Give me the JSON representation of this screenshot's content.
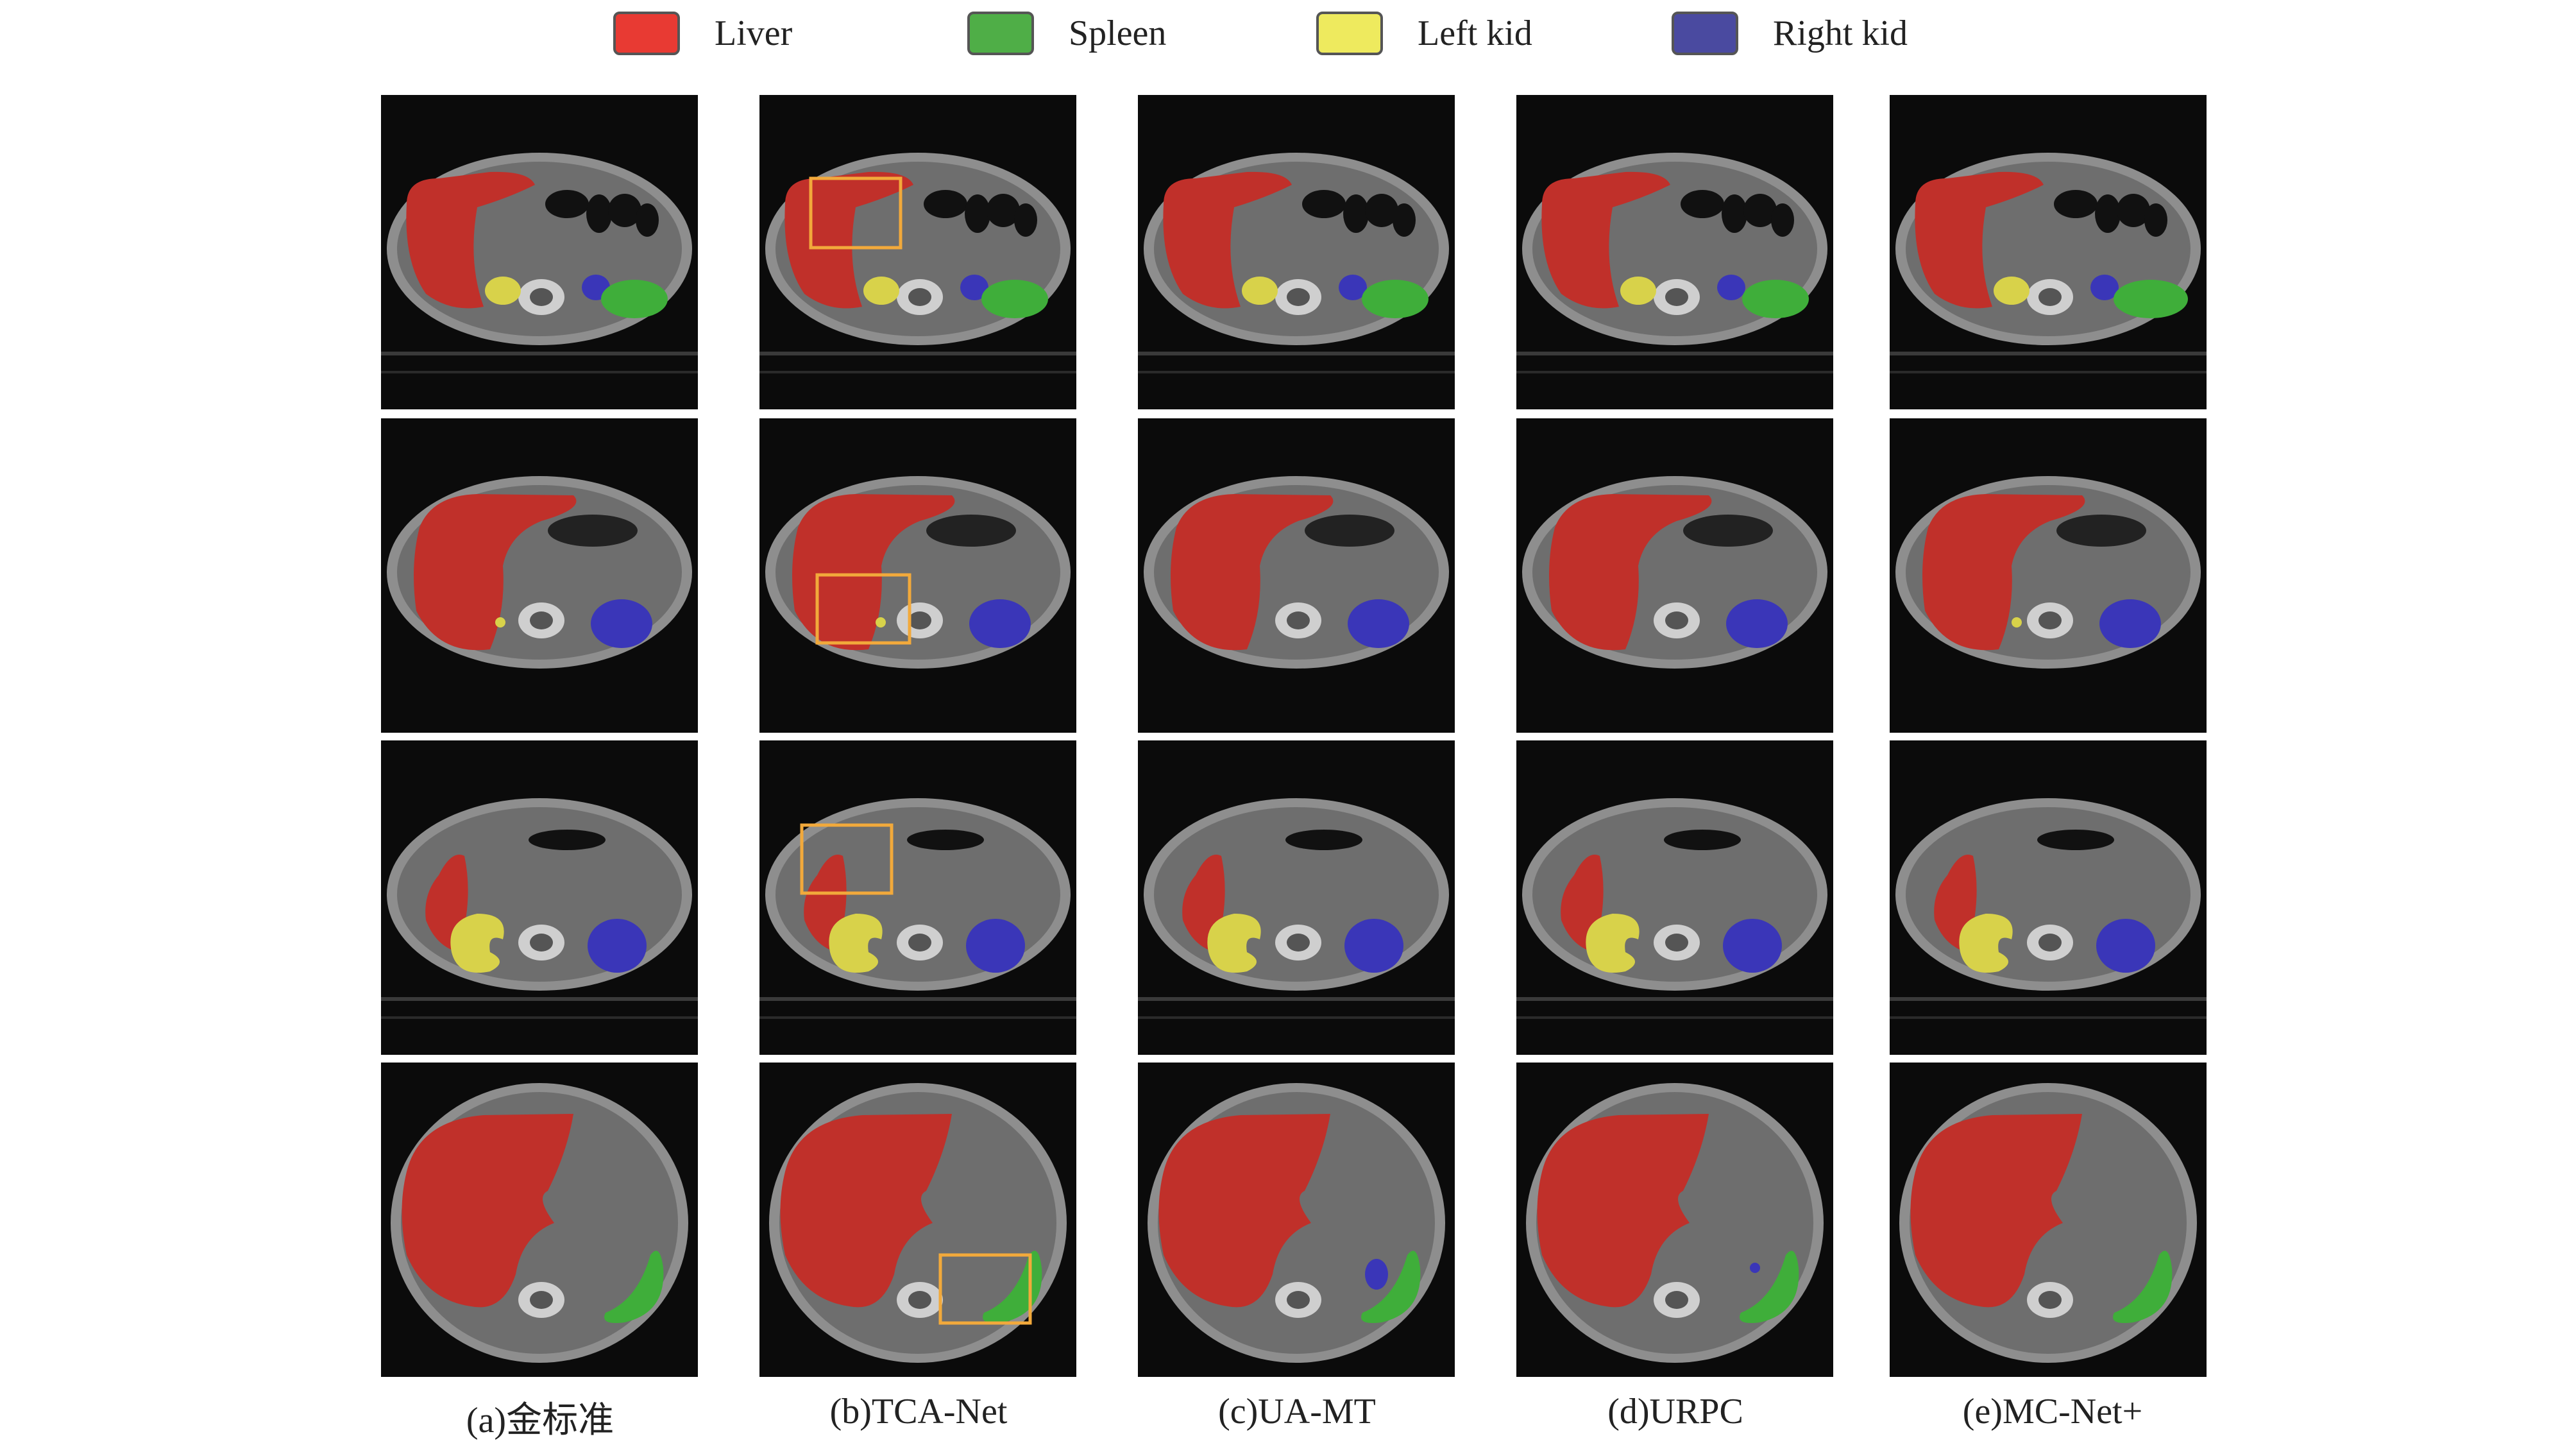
{
  "legend": [
    {
      "label": "Liver",
      "color": "#e83a33"
    },
    {
      "label": "Spleen",
      "color": "#4fae47"
    },
    {
      "label": "Left kid",
      "color": "#eeea5e"
    },
    {
      "label": "Right kid",
      "color": "#4a4aa0"
    }
  ],
  "columns": [
    {
      "caption": "(a)金标准"
    },
    {
      "caption": "(b)TCA-Net"
    },
    {
      "caption": "(c)UA-MT"
    },
    {
      "caption": "(d)URPC"
    },
    {
      "caption": "(e)MC-Net+"
    }
  ],
  "colors": {
    "liver": "#c0302a",
    "spleen": "#3fae3a",
    "left_kid": "#d8d24a",
    "right_kid": "#3a36b8",
    "highlight_box": "#f2a93b"
  }
}
